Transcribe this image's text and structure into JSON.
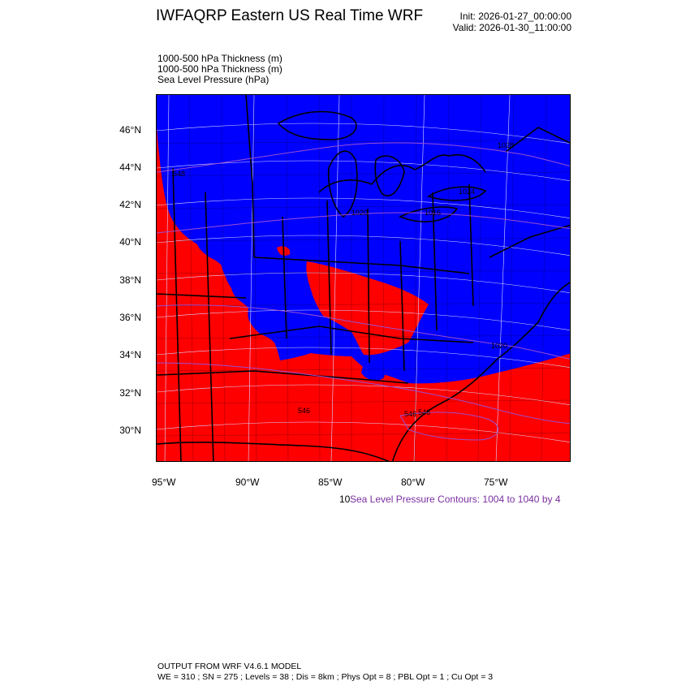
{
  "header": {
    "title": "IWFAQRP Eastern US Real Time WRF",
    "init": "Init: 2026-01-27_00:00:00",
    "valid": "Valid: 2026-01-30_11:00:00"
  },
  "fields": [
    "1000-500 hPa Thickness   (m)",
    "1000-500 hPa Thickness   (m)",
    "Sea Level Pressure   (hPa)"
  ],
  "map": {
    "lat_labels": [
      "46°N",
      "44°N",
      "42°N",
      "40°N",
      "38°N",
      "36°N",
      "34°N",
      "32°N",
      "30°N"
    ],
    "lon_labels": [
      "95°W",
      "90°W",
      "85°W",
      "80°W",
      "75°W"
    ],
    "colors": {
      "cold": "#0000ff",
      "warm": "#ff0000",
      "slp_contour": "#9a4fd0",
      "boundary": "#000000"
    },
    "contour_labels": [
      "546",
      "546",
      "546",
      "1020",
      "1016",
      "1024",
      "1020",
      "1028",
      "548"
    ]
  },
  "legend": {
    "contour_number": "10",
    "slp_contours": "Sea Level Pressure Contours: 1004 to 1040 by 4",
    "slp_color": "#7a2fa0"
  },
  "footer": {
    "model": "OUTPUT FROM WRF V4.6.1 MODEL",
    "config": "WE = 310 ; SN = 275 ; Levels = 38 ; Dis = 8km ; Phys Opt = 8 ; PBL Opt = 1 ; Cu Opt = 3"
  }
}
